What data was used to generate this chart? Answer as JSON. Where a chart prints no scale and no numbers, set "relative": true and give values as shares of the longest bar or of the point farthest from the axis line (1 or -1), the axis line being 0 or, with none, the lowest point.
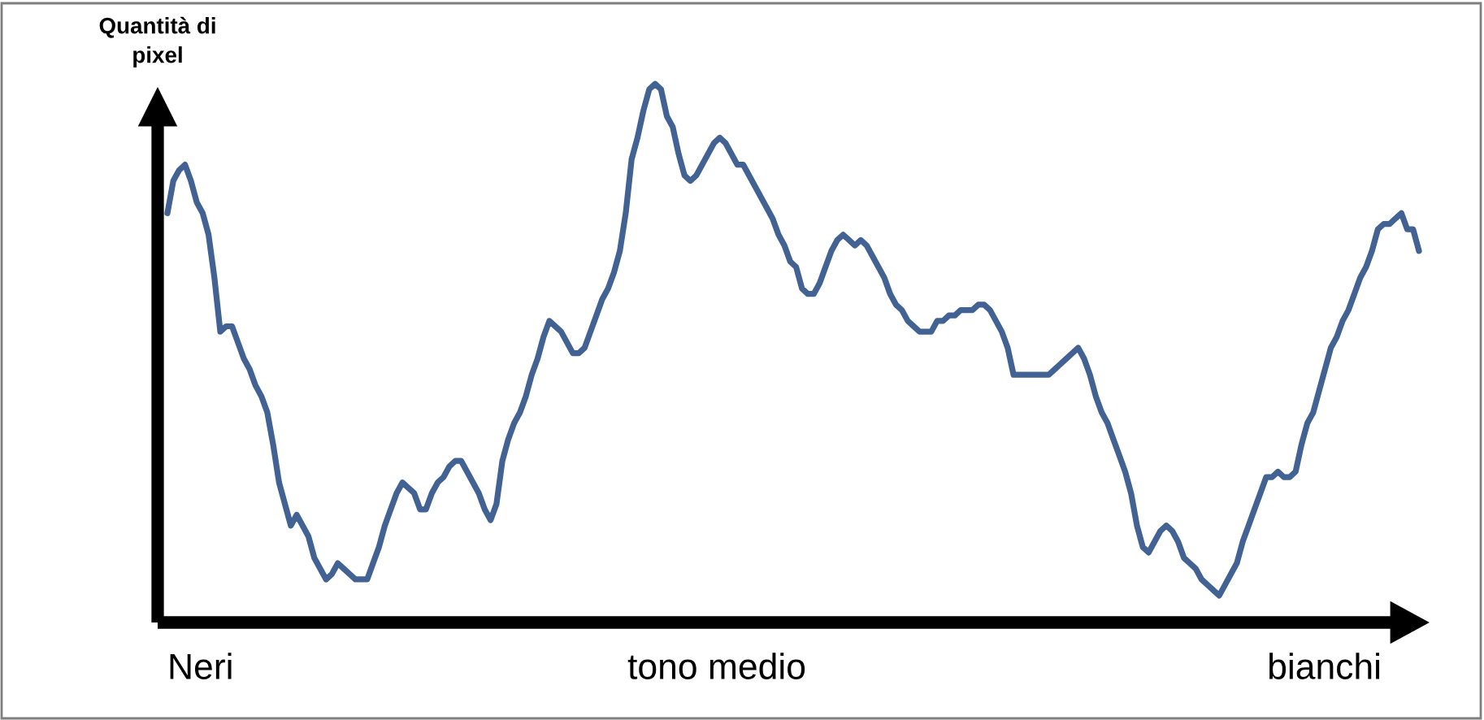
{
  "chart_data": {
    "type": "line",
    "relative": true,
    "ylabel": "Quantità di\npixel",
    "color": "#416293",
    "annotations": [
      "Neri",
      "tono medio",
      "bianchi"
    ],
    "categories": [
      null,
      null,
      null,
      null,
      null,
      null,
      null,
      null,
      null,
      null,
      null,
      null,
      null,
      null,
      null,
      null,
      null,
      null,
      null,
      null,
      null,
      null,
      null,
      null,
      null,
      null,
      null,
      null,
      null,
      null,
      null,
      null,
      null,
      null,
      null,
      null,
      null,
      null,
      null,
      null,
      null,
      null,
      null,
      null,
      null,
      null,
      null,
      null,
      null,
      null,
      null,
      null,
      null,
      null,
      null,
      null,
      null,
      null,
      null,
      null,
      null,
      null,
      null,
      null,
      null,
      null,
      null,
      null,
      null,
      null,
      null,
      null,
      null,
      null,
      null,
      null,
      null,
      null,
      null,
      null,
      null,
      null,
      null,
      null,
      null,
      null,
      null,
      null,
      null,
      null,
      null,
      null,
      null,
      null,
      null,
      null,
      null,
      null,
      null,
      null,
      null,
      null,
      null,
      null,
      null,
      null,
      null,
      null,
      null,
      null,
      null,
      null,
      null,
      null,
      null,
      null,
      null,
      null,
      null,
      null,
      null,
      null,
      null,
      null,
      null,
      null,
      null,
      null,
      null,
      null,
      null,
      null,
      null,
      null,
      null,
      null,
      null,
      null,
      null,
      null,
      null,
      null,
      null,
      null,
      null,
      null,
      null,
      null,
      null,
      null,
      null,
      null,
      null,
      null,
      null,
      null,
      null,
      null,
      null,
      null,
      null,
      null,
      null,
      null,
      null,
      null,
      null,
      null,
      null,
      null,
      null,
      null,
      null,
      null,
      null,
      null,
      null,
      null,
      null,
      null,
      null,
      null,
      null,
      null,
      null,
      null,
      null,
      null,
      null,
      null,
      null,
      null,
      null,
      null,
      null,
      null,
      null,
      null,
      null,
      null,
      null,
      null,
      null,
      null,
      null,
      null,
      null,
      null,
      null,
      null,
      null,
      null,
      null,
      null
    ],
    "values": [
      0.76,
      0.82,
      0.84,
      0.85,
      0.82,
      0.78,
      0.76,
      0.72,
      0.64,
      0.54,
      0.55,
      0.55,
      0.52,
      0.49,
      0.47,
      0.44,
      0.42,
      0.39,
      0.33,
      0.26,
      0.22,
      0.18,
      0.2,
      0.18,
      0.16,
      0.12,
      0.1,
      0.08,
      0.09,
      0.11,
      0.1,
      0.09,
      0.08,
      0.08,
      0.08,
      0.11,
      0.14,
      0.18,
      0.21,
      0.24,
      0.26,
      0.25,
      0.24,
      0.21,
      0.21,
      0.24,
      0.26,
      0.27,
      0.29,
      0.3,
      0.3,
      0.28,
      0.26,
      0.24,
      0.21,
      0.19,
      0.22,
      0.3,
      0.34,
      0.37,
      0.39,
      0.42,
      0.46,
      0.49,
      0.53,
      0.56,
      0.55,
      0.54,
      0.52,
      0.5,
      0.5,
      0.51,
      0.54,
      0.57,
      0.6,
      0.62,
      0.65,
      0.69,
      0.76,
      0.86,
      0.9,
      0.95,
      0.99,
      1.0,
      0.99,
      0.94,
      0.92,
      0.87,
      0.83,
      0.82,
      0.83,
      0.85,
      0.87,
      0.89,
      0.9,
      0.89,
      0.87,
      0.85,
      0.85,
      0.83,
      0.81,
      0.79,
      0.77,
      0.75,
      0.72,
      0.7,
      0.67,
      0.66,
      0.62,
      0.61,
      0.61,
      0.63,
      0.66,
      0.69,
      0.71,
      0.72,
      0.71,
      0.7,
      0.71,
      0.7,
      0.68,
      0.66,
      0.64,
      0.61,
      0.59,
      0.58,
      0.56,
      0.55,
      0.54,
      0.54,
      0.54,
      0.56,
      0.56,
      0.57,
      0.57,
      0.58,
      0.58,
      0.58,
      0.59,
      0.59,
      0.58,
      0.56,
      0.54,
      0.51,
      0.46,
      0.46,
      0.46,
      0.46,
      0.46,
      0.46,
      0.46,
      0.47,
      0.48,
      0.49,
      0.5,
      0.51,
      0.49,
      0.46,
      0.42,
      0.39,
      0.37,
      0.34,
      0.31,
      0.28,
      0.24,
      0.18,
      0.14,
      0.13,
      0.15,
      0.17,
      0.18,
      0.17,
      0.15,
      0.12,
      0.11,
      0.1,
      0.08,
      0.07,
      0.06,
      0.05,
      0.07,
      0.09,
      0.11,
      0.15,
      0.18,
      0.21,
      0.24,
      0.27,
      0.27,
      0.28,
      0.27,
      0.27,
      0.28,
      0.33,
      0.37,
      0.39,
      0.43,
      0.47,
      0.51,
      0.53,
      0.56,
      0.58,
      0.61,
      0.64,
      0.66,
      0.69,
      0.73,
      0.74,
      0.74,
      0.75,
      0.76,
      0.73,
      0.73,
      0.69
    ]
  }
}
